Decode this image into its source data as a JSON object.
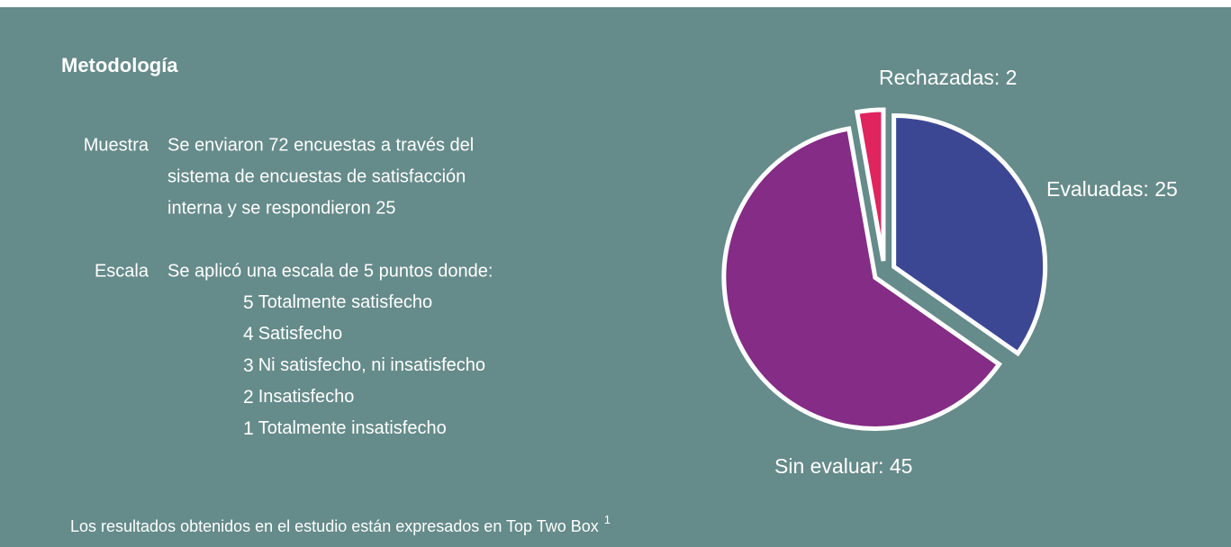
{
  "title": "Metodología",
  "items": [
    {
      "label": "Muestra",
      "lines": [
        "Se enviaron 72 encuestas a través del",
        "sistema de encuestas de satisfacción",
        "interna y se respondieron 25"
      ]
    },
    {
      "label": "Escala",
      "lines": [
        "Se aplicó una escala de 5 puntos donde:"
      ],
      "scale": [
        {
          "number": 5,
          "text": "Totalmente satisfecho"
        },
        {
          "number": 4,
          "text": "Satisfecho"
        },
        {
          "number": 3,
          "text": "Ni satisfecho, ni insatisfecho"
        },
        {
          "number": 2,
          "text": "Insatisfecho"
        },
        {
          "number": 1,
          "text": "Totalmente insatisfecho"
        }
      ]
    }
  ],
  "footer": {
    "text": "Los resultados obtenidos en el estudio están expresados en Top Two Box",
    "note": "1"
  },
  "chart_data": {
    "type": "pie",
    "values": [
      25,
      45,
      2
    ],
    "value_labels": [
      "Evaluadas: 25",
      "Sin evaluar: 45",
      "Rechazadas: 2"
    ],
    "colors": [
      "#3c4794",
      "#842c86",
      "#e0245e"
    ]
  }
}
